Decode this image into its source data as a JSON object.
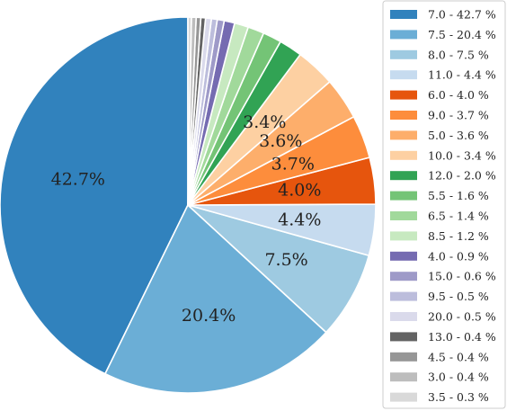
{
  "chart_data": {
    "type": "pie",
    "title": "",
    "legend_position": "right",
    "slices": [
      {
        "label": "7.0 - 42.7 %",
        "category": "7.0",
        "value": 42.7,
        "pct_label": "42.7%",
        "color": "#3182bd"
      },
      {
        "label": "7.5 - 20.4 %",
        "category": "7.5",
        "value": 20.4,
        "pct_label": "20.4%",
        "color": "#6baed6"
      },
      {
        "label": "8.0 - 7.5 %",
        "category": "8.0",
        "value": 7.5,
        "pct_label": "7.5%",
        "color": "#9ecae1"
      },
      {
        "label": "11.0 - 4.4 %",
        "category": "11.0",
        "value": 4.4,
        "pct_label": "4.4%",
        "color": "#c6dbef"
      },
      {
        "label": "6.0 - 4.0 %",
        "category": "6.0",
        "value": 4.0,
        "pct_label": "4.0%",
        "color": "#e6550d"
      },
      {
        "label": "9.0 - 3.7 %",
        "category": "9.0",
        "value": 3.7,
        "pct_label": "3.7%",
        "color": "#fd8d3c"
      },
      {
        "label": "5.0 - 3.6 %",
        "category": "5.0",
        "value": 3.6,
        "pct_label": "3.6%",
        "color": "#fdae6b"
      },
      {
        "label": "10.0 - 3.4 %",
        "category": "10.0",
        "value": 3.4,
        "pct_label": "3.4%",
        "color": "#fdd0a2"
      },
      {
        "label": "12.0 - 2.0 %",
        "category": "12.0",
        "value": 2.0,
        "pct_label": "",
        "color": "#31a354"
      },
      {
        "label": "5.5 - 1.6 %",
        "category": "5.5",
        "value": 1.6,
        "pct_label": "",
        "color": "#74c476"
      },
      {
        "label": "6.5 - 1.4 %",
        "category": "6.5",
        "value": 1.4,
        "pct_label": "",
        "color": "#a1d99b"
      },
      {
        "label": "8.5 - 1.2 %",
        "category": "8.5",
        "value": 1.2,
        "pct_label": "",
        "color": "#c7e9c0"
      },
      {
        "label": "4.0 - 0.9 %",
        "category": "4.0",
        "value": 0.9,
        "pct_label": "",
        "color": "#756bb1"
      },
      {
        "label": "15.0 - 0.6 %",
        "category": "15.0",
        "value": 0.6,
        "pct_label": "",
        "color": "#9e9ac8"
      },
      {
        "label": "9.5 - 0.5 %",
        "category": "9.5",
        "value": 0.5,
        "pct_label": "",
        "color": "#bcbddc"
      },
      {
        "label": "20.0 - 0.5 %",
        "category": "20.0",
        "value": 0.5,
        "pct_label": "",
        "color": "#dadaeb"
      },
      {
        "label": "13.0 - 0.4 %",
        "category": "13.0",
        "value": 0.4,
        "pct_label": "",
        "color": "#636363"
      },
      {
        "label": "4.5 - 0.4 %",
        "category": "4.5",
        "value": 0.4,
        "pct_label": "",
        "color": "#969696"
      },
      {
        "label": "3.0 - 0.4 %",
        "category": "3.0",
        "value": 0.4,
        "pct_label": "",
        "color": "#bdbdbd"
      },
      {
        "label": "3.5 - 0.3 %",
        "category": "3.5",
        "value": 0.3,
        "pct_label": "",
        "color": "#d9d9d9"
      }
    ]
  }
}
